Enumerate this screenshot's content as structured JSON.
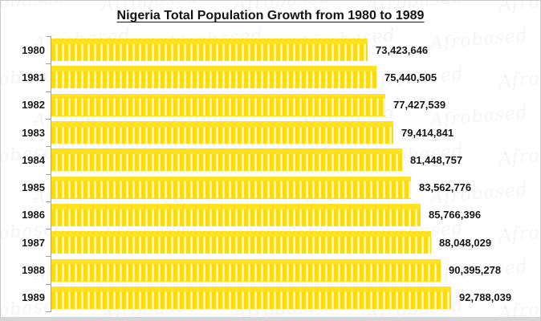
{
  "title": "Nigeria Total Population Growth from 1980 to 1989",
  "watermark": {
    "text": "Afrobased"
  },
  "colors": {
    "bar_base": "#FFD90F",
    "bar_stripe": "#FFF7BC",
    "bar_top": "#FFE120",
    "axis": "#a3a3a3",
    "text": "#161616",
    "frame_border": "#c9c9c9"
  },
  "chart_data": {
    "type": "bar",
    "orientation": "horizontal",
    "title": "Nigeria Total Population Growth from 1980 to 1989",
    "categories": [
      "1980",
      "1981",
      "1982",
      "1983",
      "1984",
      "1985",
      "1986",
      "1987",
      "1988",
      "1989"
    ],
    "values": [
      73423646,
      75440505,
      77427539,
      79414841,
      81448757,
      83562776,
      85766396,
      88048029,
      90395278,
      92788039
    ],
    "value_labels": [
      "73,423,646",
      "75,440,505",
      "77,427,539",
      "79,414,841",
      "81,448,757",
      "83,562,776",
      "85,766,396",
      "88,048,029",
      "90,395,278",
      "92,788,039"
    ],
    "xlabel": "",
    "ylabel": "",
    "xlim": [
      0,
      92788039
    ],
    "grid": false,
    "legend": false,
    "data_labels": true
  }
}
